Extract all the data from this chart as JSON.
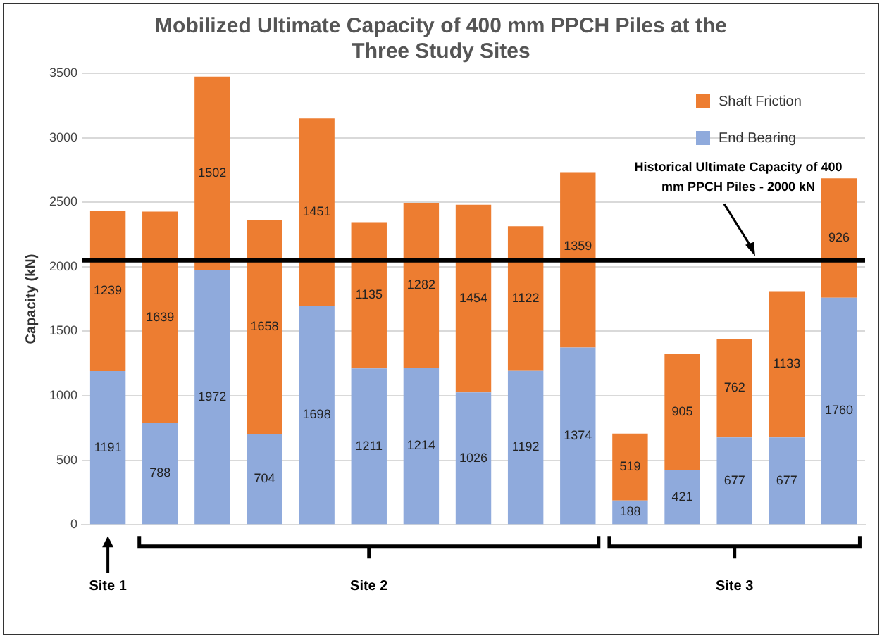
{
  "chart_data": {
    "type": "bar",
    "stacked": true,
    "title": "Mobilized Ultimate Capacity of 400 mm PPCH Piles at the Three Study Sites",
    "ylabel": "Capacity (kN)",
    "categories": [
      null,
      null,
      null,
      null,
      null,
      null,
      null,
      null,
      null,
      null,
      null,
      null,
      null,
      null,
      null
    ],
    "series": [
      {
        "name": "End Bearing",
        "color": "#8faadc",
        "values": [
          1191,
          788,
          1972,
          704,
          1698,
          1211,
          1214,
          1026,
          1192,
          1374,
          188,
          421,
          677,
          677,
          1760
        ]
      },
      {
        "name": "Shaft Friction",
        "color": "#ed7d31",
        "values": [
          1239,
          1639,
          1502,
          1658,
          1451,
          1135,
          1282,
          1454,
          1122,
          1359,
          519,
          905,
          762,
          1133,
          926
        ]
      }
    ],
    "ylim": [
      0,
      3500
    ],
    "yticks": [
      0,
      500,
      1000,
      1500,
      2000,
      2500,
      3000,
      3500
    ],
    "grid": "y",
    "legend": "top right",
    "data_labels": true,
    "ref_lines": [
      {
        "axis": "y",
        "value": 2050,
        "label": "Historical Ultimate Capacity of 400 mm PPCH Piles - 2000 kN",
        "color": "#000000"
      }
    ],
    "annotations": [
      "Site 1",
      "Site 2",
      "Site 3"
    ]
  }
}
